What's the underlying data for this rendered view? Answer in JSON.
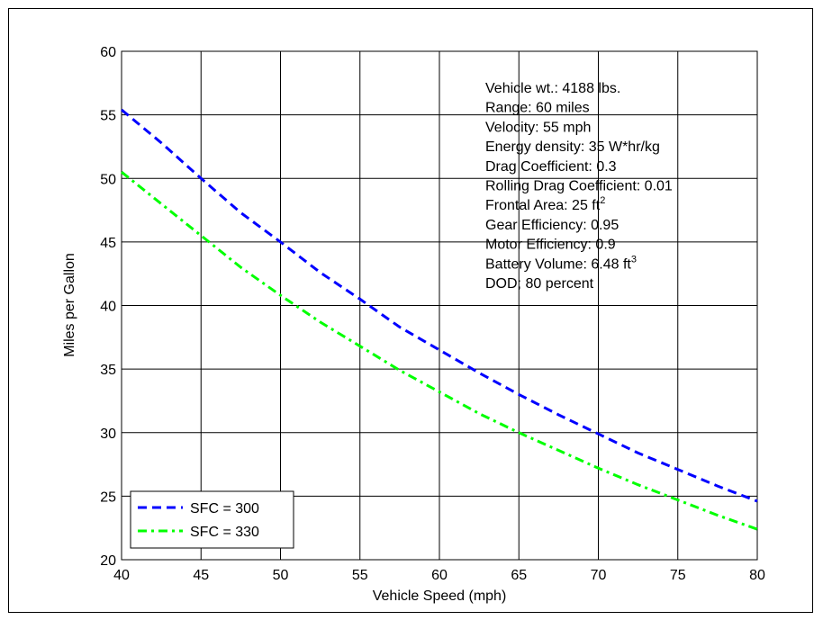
{
  "chart_data": {
    "type": "line",
    "title": "",
    "xlabel": "Vehicle Speed (mph)",
    "ylabel": "Miles per Gallon",
    "xlim": [
      40,
      80
    ],
    "ylim": [
      20,
      60
    ],
    "xticks": [
      40,
      45,
      50,
      55,
      60,
      65,
      70,
      75,
      80
    ],
    "yticks": [
      20,
      25,
      30,
      35,
      40,
      45,
      50,
      55,
      60
    ],
    "grid": true,
    "legend_position": "bottom-left",
    "x": [
      40,
      42.5,
      45,
      47.5,
      50,
      52.5,
      55,
      57.5,
      60,
      62.5,
      65,
      67.5,
      70,
      72.5,
      75,
      77.5,
      80
    ],
    "series": [
      {
        "name": "SFC = 300",
        "color": "#0000ff",
        "style": "dashed",
        "values": [
          55.4,
          52.8,
          50.0,
          47.3,
          45.0,
          42.6,
          40.5,
          38.3,
          36.5,
          34.7,
          33.0,
          31.4,
          29.9,
          28.4,
          27.1,
          25.8,
          24.6
        ]
      },
      {
        "name": "SFC = 330",
        "color": "#00ff00",
        "style": "dash-dot",
        "values": [
          50.5,
          48.0,
          45.5,
          43.0,
          40.8,
          38.7,
          36.8,
          34.9,
          33.2,
          31.5,
          30.0,
          28.6,
          27.2,
          25.9,
          24.7,
          23.5,
          22.4
        ]
      }
    ],
    "annotations": [
      {
        "text": "Vehicle wt.: 4188 lbs.",
        "sup": ""
      },
      {
        "text": "Range: 60 miles",
        "sup": ""
      },
      {
        "text": "Velocity: 55 mph",
        "sup": ""
      },
      {
        "text": "Energy density: 35 W*hr/kg",
        "sup": ""
      },
      {
        "text": "Drag Coefficient: 0.3",
        "sup": ""
      },
      {
        "text": "Rolling Drag Coefficient: 0.01",
        "sup": ""
      },
      {
        "text": "Frontal Area: 25 ft",
        "sup": "2"
      },
      {
        "text": "Gear Efficiency: 0.95",
        "sup": ""
      },
      {
        "text": "Motor Efficiency: 0.9",
        "sup": ""
      },
      {
        "text": "Battery Volume: 6.48 ft",
        "sup": "3"
      },
      {
        "text": "DOD; 80 percent",
        "sup": ""
      }
    ]
  }
}
